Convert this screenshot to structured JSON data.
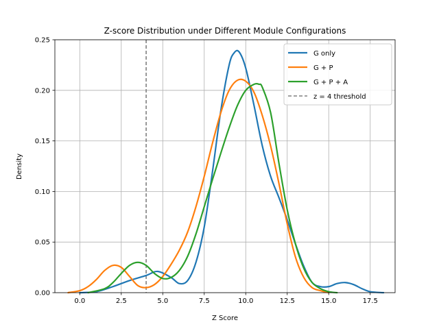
{
  "chart_data": {
    "type": "line",
    "title": "Z-score Distribution under Different Module Configurations",
    "xlabel": "Z Score",
    "ylabel": "Density",
    "xlim": [
      -1.5,
      19.0
    ],
    "ylim": [
      0.0,
      0.25
    ],
    "xticks": [
      0.0,
      2.5,
      5.0,
      7.5,
      10.0,
      12.5,
      15.0,
      17.5
    ],
    "xtick_labels": [
      "0.0",
      "2.5",
      "5.0",
      "7.5",
      "10.0",
      "12.5",
      "15.0",
      "17.5"
    ],
    "yticks": [
      0.0,
      0.05,
      0.1,
      0.15,
      0.2,
      0.25
    ],
    "ytick_labels": [
      "0.00",
      "0.05",
      "0.10",
      "0.15",
      "0.20",
      "0.25"
    ],
    "grid": true,
    "legend_position": "top-right",
    "threshold": {
      "label": "z = 4 threshold",
      "x": 4.0,
      "color": "#7f7f7f",
      "style": "dashed"
    },
    "series": [
      {
        "name": "G only",
        "color": "#1f77b4",
        "x": [
          0.0,
          1.0,
          2.0,
          3.0,
          4.0,
          4.7,
          5.5,
          6.0,
          6.5,
          7.0,
          7.5,
          8.0,
          8.5,
          9.0,
          9.3,
          9.6,
          10.0,
          10.5,
          11.0,
          11.5,
          12.0,
          12.5,
          13.0,
          13.5,
          14.0,
          14.5,
          15.0,
          15.5,
          16.0,
          16.5,
          17.0,
          17.5,
          18.3
        ],
        "y": [
          0.0,
          0.001,
          0.006,
          0.012,
          0.017,
          0.021,
          0.015,
          0.009,
          0.012,
          0.03,
          0.065,
          0.12,
          0.18,
          0.225,
          0.237,
          0.238,
          0.222,
          0.185,
          0.145,
          0.115,
          0.094,
          0.072,
          0.048,
          0.026,
          0.01,
          0.006,
          0.006,
          0.009,
          0.01,
          0.008,
          0.004,
          0.001,
          0.0
        ]
      },
      {
        "name": "G + P",
        "color": "#ff7f0e",
        "x": [
          -0.7,
          0.0,
          0.5,
          1.0,
          1.5,
          2.0,
          2.5,
          3.0,
          3.5,
          4.0,
          4.5,
          5.0,
          5.5,
          6.0,
          6.5,
          7.0,
          7.5,
          8.0,
          8.5,
          9.0,
          9.5,
          10.0,
          10.5,
          11.0,
          11.5,
          12.0,
          12.5,
          13.0,
          13.5,
          14.0,
          14.5,
          15.0
        ],
        "y": [
          0.0,
          0.002,
          0.006,
          0.013,
          0.022,
          0.027,
          0.025,
          0.016,
          0.007,
          0.005,
          0.008,
          0.016,
          0.028,
          0.042,
          0.06,
          0.085,
          0.115,
          0.148,
          0.178,
          0.2,
          0.21,
          0.209,
          0.198,
          0.175,
          0.145,
          0.108,
          0.068,
          0.035,
          0.015,
          0.005,
          0.002,
          0.0
        ]
      },
      {
        "name": "G + P + A",
        "color": "#2ca02c",
        "x": [
          0.5,
          1.5,
          2.0,
          2.5,
          3.0,
          3.5,
          4.0,
          4.5,
          5.0,
          5.5,
          6.0,
          6.5,
          7.0,
          7.5,
          8.0,
          8.5,
          9.0,
          9.5,
          10.0,
          10.5,
          10.8,
          11.0,
          11.5,
          12.0,
          12.5,
          13.0,
          13.5,
          14.0,
          14.5,
          15.0,
          15.5
        ],
        "y": [
          0.0,
          0.004,
          0.01,
          0.019,
          0.027,
          0.03,
          0.027,
          0.019,
          0.014,
          0.015,
          0.022,
          0.036,
          0.058,
          0.085,
          0.112,
          0.138,
          0.163,
          0.185,
          0.2,
          0.206,
          0.206,
          0.203,
          0.178,
          0.128,
          0.082,
          0.048,
          0.024,
          0.01,
          0.004,
          0.001,
          0.0
        ]
      }
    ]
  }
}
